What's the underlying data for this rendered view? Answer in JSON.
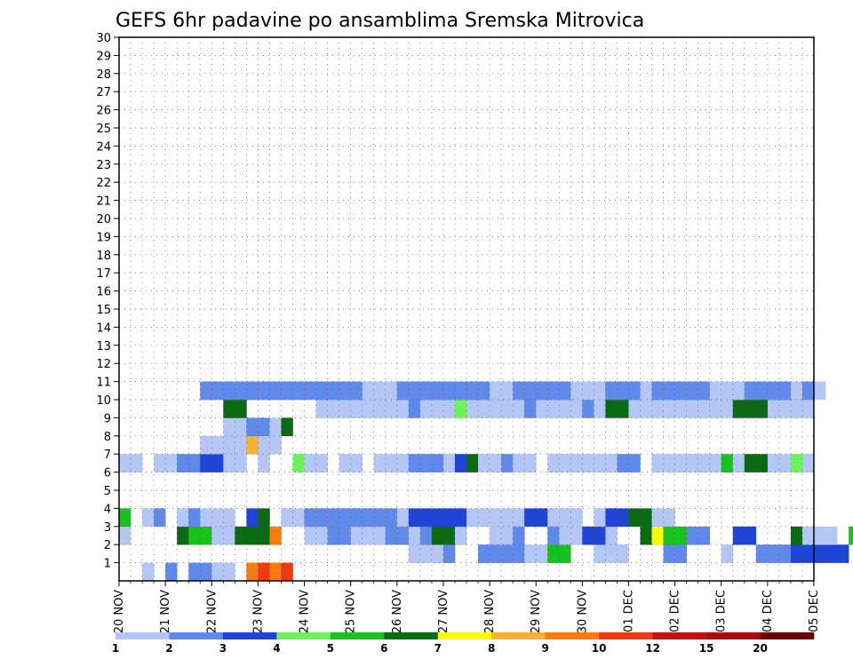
{
  "chart_data": {
    "type": "heatmap",
    "title": "GEFS 6hr padavine po ansamblima Sremska Mitrovica",
    "x_labels": [
      "20 NOV",
      "21 NOV",
      "22 NOV",
      "23 NOV",
      "24 NOV",
      "25 NOV",
      "26 NOV",
      "27 NOV",
      "28 NOV",
      "29 NOV",
      "30 NOV",
      "01 DEC",
      "02 DEC",
      "03 DEC",
      "04 DEC",
      "05 DEC"
    ],
    "y_labels": [
      "1",
      "2",
      "3",
      "4",
      "5",
      "6",
      "7",
      "8",
      "9",
      "10",
      "11",
      "12",
      "13",
      "14",
      "15",
      "16",
      "17",
      "18",
      "19",
      "20",
      "21",
      "22",
      "23",
      "24",
      "25",
      "26",
      "27",
      "28",
      "29",
      "30"
    ],
    "ylim": [
      0,
      30
    ],
    "xlim": [
      0,
      60
    ],
    "grid": true,
    "legend_placement": "bottom",
    "legend": {
      "labels": [
        "1",
        "2",
        "3",
        "4",
        "5",
        "6",
        "7",
        "8",
        "9",
        "10",
        "12",
        "15",
        "20"
      ],
      "colors": [
        "#b4c6f5",
        "#5f89ea",
        "#1f45d8",
        "#6ef25c",
        "#17c21c",
        "#0b6b12",
        "#fffb00",
        "#fdb133",
        "#fb7a0c",
        "#ed3a10",
        "#c4130f",
        "#a80e0e",
        "#6a0000"
      ]
    },
    "cells": [
      [
        0,
        2,
        0
      ],
      [
        1,
        4,
        0
      ],
      [
        1,
        6,
        0
      ],
      [
        1,
        7,
        0
      ],
      [
        0,
        8,
        0
      ],
      [
        0,
        9,
        0
      ],
      [
        8,
        11,
        0
      ],
      [
        9,
        12,
        0
      ],
      [
        8,
        13,
        0
      ],
      [
        9,
        14,
        0
      ],
      [
        0,
        25,
        1
      ],
      [
        0,
        26,
        1
      ],
      [
        0,
        27,
        1
      ],
      [
        1,
        28,
        1
      ],
      [
        1,
        31,
        1
      ],
      [
        1,
        32,
        1
      ],
      [
        1,
        33,
        1
      ],
      [
        1,
        34,
        1
      ],
      [
        0,
        35,
        1
      ],
      [
        0,
        36,
        1
      ],
      [
        4,
        37,
        1
      ],
      [
        4,
        38,
        1
      ],
      [
        0,
        41,
        1
      ],
      [
        0,
        42,
        1
      ],
      [
        0,
        43,
        1
      ],
      [
        1,
        47,
        1
      ],
      [
        1,
        48,
        1
      ],
      [
        0,
        52,
        1
      ],
      [
        1,
        55,
        1
      ],
      [
        1,
        56,
        1
      ],
      [
        1,
        57,
        1
      ],
      [
        2,
        58,
        1
      ],
      [
        2,
        59,
        1
      ],
      [
        2,
        60,
        1
      ],
      [
        2,
        61,
        1
      ],
      [
        2,
        62,
        1
      ],
      [
        0,
        64,
        1
      ],
      [
        0,
        65,
        1
      ],
      [
        0,
        67,
        1
      ],
      [
        0,
        68,
        1
      ],
      [
        0,
        69,
        1
      ],
      [
        0,
        70,
        1
      ],
      [
        0,
        71,
        1
      ],
      [
        0,
        72,
        1
      ],
      [
        0,
        73,
        1
      ],
      [
        0,
        75,
        1
      ],
      [
        4,
        76,
        1
      ],
      [
        4,
        77,
        1
      ],
      [
        0,
        79,
        1
      ],
      [
        0,
        80,
        1
      ],
      [
        0,
        0,
        2
      ],
      [
        5,
        5,
        2
      ],
      [
        4,
        6,
        2
      ],
      [
        4,
        7,
        2
      ],
      [
        0,
        8,
        2
      ],
      [
        0,
        9,
        2
      ],
      [
        5,
        10,
        2
      ],
      [
        5,
        11,
        2
      ],
      [
        5,
        12,
        2
      ],
      [
        8,
        13,
        2
      ],
      [
        0,
        16,
        2
      ],
      [
        0,
        17,
        2
      ],
      [
        1,
        18,
        2
      ],
      [
        1,
        19,
        2
      ],
      [
        0,
        20,
        2
      ],
      [
        0,
        21,
        2
      ],
      [
        0,
        22,
        2
      ],
      [
        1,
        23,
        2
      ],
      [
        1,
        24,
        2
      ],
      [
        0,
        25,
        2
      ],
      [
        1,
        26,
        2
      ],
      [
        5,
        27,
        2
      ],
      [
        5,
        28,
        2
      ],
      [
        0,
        29,
        2
      ],
      [
        0,
        32,
        2
      ],
      [
        0,
        33,
        2
      ],
      [
        1,
        34,
        2
      ],
      [
        1,
        37,
        2
      ],
      [
        0,
        38,
        2
      ],
      [
        0,
        39,
        2
      ],
      [
        2,
        40,
        2
      ],
      [
        2,
        41,
        2
      ],
      [
        0,
        42,
        2
      ],
      [
        5,
        45,
        2
      ],
      [
        6,
        46,
        2
      ],
      [
        4,
        47,
        2
      ],
      [
        4,
        48,
        2
      ],
      [
        1,
        49,
        2
      ],
      [
        1,
        50,
        2
      ],
      [
        2,
        53,
        2
      ],
      [
        2,
        54,
        2
      ],
      [
        5,
        58,
        2
      ],
      [
        0,
        59,
        2
      ],
      [
        0,
        60,
        2
      ],
      [
        0,
        61,
        2
      ],
      [
        4,
        63,
        2
      ],
      [
        4,
        64,
        2
      ],
      [
        5,
        65,
        2
      ],
      [
        6,
        66,
        2
      ],
      [
        6,
        67,
        2
      ],
      [
        0,
        70,
        2
      ],
      [
        0,
        71,
        2
      ],
      [
        0,
        72,
        2
      ],
      [
        0,
        73,
        2
      ],
      [
        0,
        75,
        2
      ],
      [
        1,
        76,
        2
      ],
      [
        2,
        77,
        2
      ],
      [
        5,
        78,
        2
      ],
      [
        5,
        79,
        2
      ],
      [
        0,
        80,
        2
      ],
      [
        0,
        81,
        2
      ],
      [
        0,
        82,
        2
      ],
      [
        1,
        83,
        2
      ],
      [
        0,
        86,
        2
      ],
      [
        0,
        87,
        2
      ],
      [
        6,
        88,
        2
      ],
      [
        0,
        89,
        2
      ],
      [
        0,
        90,
        2
      ],
      [
        2,
        91,
        2
      ],
      [
        2,
        92,
        2
      ],
      [
        5,
        93,
        2
      ],
      [
        5,
        94,
        2
      ],
      [
        2,
        95,
        2
      ],
      [
        2,
        96,
        2
      ],
      [
        0,
        97,
        2
      ],
      [
        0,
        98,
        2
      ],
      [
        4,
        0,
        3
      ],
      [
        0,
        2,
        3
      ],
      [
        1,
        3,
        3
      ],
      [
        0,
        5,
        3
      ],
      [
        1,
        6,
        3
      ],
      [
        0,
        7,
        3
      ],
      [
        0,
        8,
        3
      ],
      [
        0,
        9,
        3
      ],
      [
        2,
        11,
        3
      ],
      [
        5,
        12,
        3
      ],
      [
        0,
        14,
        3
      ],
      [
        0,
        15,
        3
      ],
      [
        1,
        16,
        3
      ],
      [
        1,
        17,
        3
      ],
      [
        1,
        18,
        3
      ],
      [
        1,
        19,
        3
      ],
      [
        1,
        20,
        3
      ],
      [
        1,
        21,
        3
      ],
      [
        1,
        22,
        3
      ],
      [
        1,
        23,
        3
      ],
      [
        0,
        24,
        3
      ],
      [
        2,
        25,
        3
      ],
      [
        2,
        26,
        3
      ],
      [
        2,
        27,
        3
      ],
      [
        2,
        28,
        3
      ],
      [
        2,
        29,
        3
      ],
      [
        0,
        30,
        3
      ],
      [
        0,
        31,
        3
      ],
      [
        0,
        32,
        3
      ],
      [
        0,
        33,
        3
      ],
      [
        0,
        34,
        3
      ],
      [
        2,
        35,
        3
      ],
      [
        2,
        36,
        3
      ],
      [
        0,
        37,
        3
      ],
      [
        0,
        38,
        3
      ],
      [
        0,
        39,
        3
      ],
      [
        0,
        41,
        3
      ],
      [
        2,
        42,
        3
      ],
      [
        2,
        43,
        3
      ],
      [
        5,
        44,
        3
      ],
      [
        5,
        45,
        3
      ],
      [
        0,
        46,
        3
      ],
      [
        0,
        47,
        3
      ],
      [
        0,
        0,
        6
      ],
      [
        0,
        1,
        6
      ],
      [
        0,
        3,
        6
      ],
      [
        0,
        4,
        6
      ],
      [
        1,
        5,
        6
      ],
      [
        1,
        6,
        6
      ],
      [
        2,
        7,
        6
      ],
      [
        2,
        8,
        6
      ],
      [
        0,
        9,
        6
      ],
      [
        0,
        10,
        6
      ],
      [
        0,
        12,
        6
      ],
      [
        3,
        15,
        6
      ],
      [
        0,
        16,
        6
      ],
      [
        0,
        17,
        6
      ],
      [
        0,
        19,
        6
      ],
      [
        0,
        20,
        6
      ],
      [
        0,
        22,
        6
      ],
      [
        0,
        23,
        6
      ],
      [
        0,
        24,
        6
      ],
      [
        1,
        25,
        6
      ],
      [
        1,
        26,
        6
      ],
      [
        1,
        27,
        6
      ],
      [
        0,
        28,
        6
      ],
      [
        2,
        29,
        6
      ],
      [
        5,
        30,
        6
      ],
      [
        0,
        31,
        6
      ],
      [
        0,
        32,
        6
      ],
      [
        1,
        33,
        6
      ],
      [
        0,
        34,
        6
      ],
      [
        0,
        35,
        6
      ],
      [
        0,
        37,
        6
      ],
      [
        0,
        38,
        6
      ],
      [
        0,
        39,
        6
      ],
      [
        0,
        40,
        6
      ],
      [
        0,
        41,
        6
      ],
      [
        0,
        42,
        6
      ],
      [
        1,
        43,
        6
      ],
      [
        1,
        44,
        6
      ],
      [
        0,
        46,
        6
      ],
      [
        0,
        47,
        6
      ],
      [
        0,
        48,
        6
      ],
      [
        0,
        49,
        6
      ],
      [
        0,
        50,
        6
      ],
      [
        0,
        51,
        6
      ],
      [
        4,
        52,
        6
      ],
      [
        0,
        53,
        6
      ],
      [
        5,
        54,
        6
      ],
      [
        5,
        55,
        6
      ],
      [
        0,
        56,
        6
      ],
      [
        0,
        57,
        6
      ],
      [
        3,
        58,
        6
      ],
      [
        0,
        59,
        6
      ],
      [
        0,
        7,
        7
      ],
      [
        0,
        8,
        7
      ],
      [
        0,
        9,
        7
      ],
      [
        0,
        10,
        7
      ],
      [
        7,
        11,
        7
      ],
      [
        0,
        12,
        7
      ],
      [
        0,
        13,
        7
      ],
      [
        0,
        9,
        8
      ],
      [
        0,
        10,
        8
      ],
      [
        1,
        11,
        8
      ],
      [
        1,
        12,
        8
      ],
      [
        0,
        13,
        8
      ],
      [
        5,
        14,
        8
      ],
      [
        5,
        9,
        9
      ],
      [
        5,
        10,
        9
      ],
      [
        0,
        17,
        9
      ],
      [
        0,
        18,
        9
      ],
      [
        0,
        19,
        9
      ],
      [
        0,
        20,
        9
      ],
      [
        0,
        21,
        9
      ],
      [
        0,
        22,
        9
      ],
      [
        0,
        23,
        9
      ],
      [
        0,
        24,
        9
      ],
      [
        1,
        25,
        9
      ],
      [
        0,
        26,
        9
      ],
      [
        0,
        27,
        9
      ],
      [
        0,
        28,
        9
      ],
      [
        3,
        29,
        9
      ],
      [
        0,
        30,
        9
      ],
      [
        0,
        31,
        9
      ],
      [
        0,
        32,
        9
      ],
      [
        0,
        33,
        9
      ],
      [
        0,
        34,
        9
      ],
      [
        1,
        35,
        9
      ],
      [
        0,
        36,
        9
      ],
      [
        0,
        37,
        9
      ],
      [
        0,
        38,
        9
      ],
      [
        0,
        39,
        9
      ],
      [
        1,
        40,
        9
      ],
      [
        0,
        41,
        9
      ],
      [
        5,
        42,
        9
      ],
      [
        5,
        43,
        9
      ],
      [
        0,
        44,
        9
      ],
      [
        0,
        45,
        9
      ],
      [
        0,
        46,
        9
      ],
      [
        0,
        47,
        9
      ],
      [
        0,
        48,
        9
      ],
      [
        0,
        49,
        9
      ],
      [
        0,
        50,
        9
      ],
      [
        0,
        51,
        9
      ],
      [
        0,
        52,
        9
      ],
      [
        5,
        53,
        9
      ],
      [
        5,
        54,
        9
      ],
      [
        5,
        55,
        9
      ],
      [
        0,
        56,
        9
      ],
      [
        0,
        57,
        9
      ],
      [
        0,
        58,
        9
      ],
      [
        0,
        59,
        9
      ],
      [
        1,
        7,
        10
      ],
      [
        1,
        8,
        10
      ],
      [
        1,
        9,
        10
      ],
      [
        1,
        10,
        10
      ],
      [
        1,
        11,
        10
      ],
      [
        1,
        12,
        10
      ],
      [
        1,
        13,
        10
      ],
      [
        1,
        14,
        10
      ],
      [
        1,
        15,
        10
      ],
      [
        1,
        16,
        10
      ],
      [
        1,
        17,
        10
      ],
      [
        1,
        18,
        10
      ],
      [
        1,
        19,
        10
      ],
      [
        1,
        20,
        10
      ],
      [
        0,
        21,
        10
      ],
      [
        0,
        22,
        10
      ],
      [
        0,
        23,
        10
      ],
      [
        1,
        24,
        10
      ],
      [
        1,
        25,
        10
      ],
      [
        1,
        26,
        10
      ],
      [
        1,
        27,
        10
      ],
      [
        1,
        28,
        10
      ],
      [
        1,
        29,
        10
      ],
      [
        1,
        30,
        10
      ],
      [
        1,
        31,
        10
      ],
      [
        0,
        32,
        10
      ],
      [
        0,
        33,
        10
      ],
      [
        1,
        34,
        10
      ],
      [
        1,
        35,
        10
      ],
      [
        1,
        36,
        10
      ],
      [
        1,
        37,
        10
      ],
      [
        1,
        38,
        10
      ],
      [
        0,
        39,
        10
      ],
      [
        0,
        40,
        10
      ],
      [
        0,
        41,
        10
      ],
      [
        1,
        42,
        10
      ],
      [
        1,
        43,
        10
      ],
      [
        1,
        44,
        10
      ],
      [
        0,
        45,
        10
      ],
      [
        1,
        46,
        10
      ],
      [
        1,
        47,
        10
      ],
      [
        1,
        48,
        10
      ],
      [
        1,
        49,
        10
      ],
      [
        1,
        50,
        10
      ],
      [
        0,
        51,
        10
      ],
      [
        0,
        52,
        10
      ],
      [
        0,
        53,
        10
      ],
      [
        1,
        54,
        10
      ],
      [
        1,
        55,
        10
      ],
      [
        1,
        56,
        10
      ],
      [
        1,
        57,
        10
      ],
      [
        0,
        58,
        10
      ],
      [
        1,
        59,
        10
      ],
      [
        0,
        60,
        10
      ]
    ]
  }
}
